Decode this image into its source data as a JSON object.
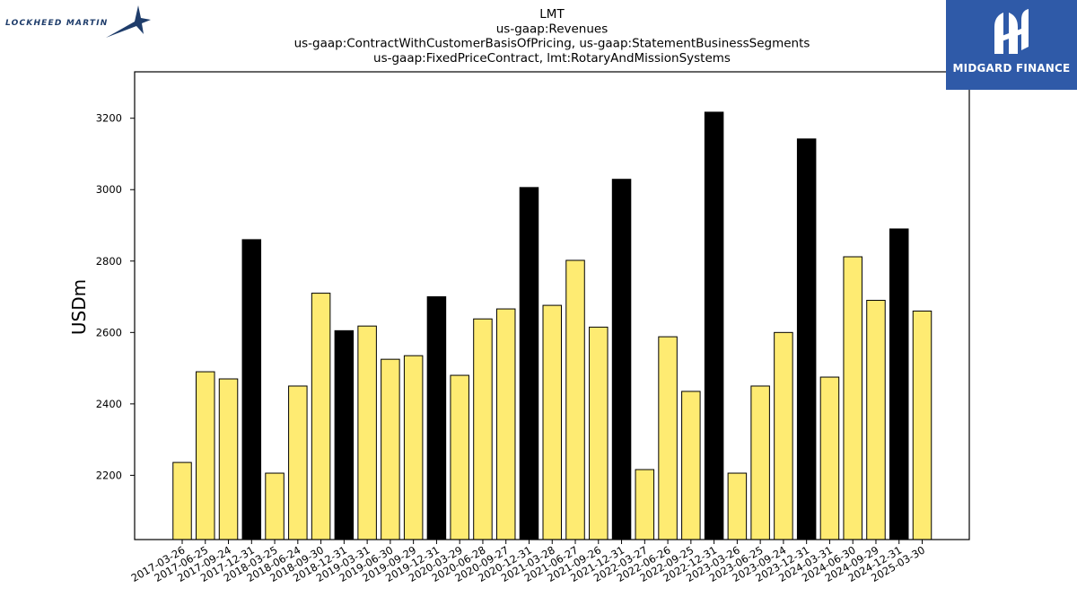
{
  "brands": {
    "left": "LOCKHEED MARTIN",
    "right": "MIDGARD FINANCE"
  },
  "colors": {
    "bar_fill": "#feeb72",
    "bar_highlight": "#000000",
    "bar_edge": "#000000",
    "logo_background": "#2f5aa8"
  },
  "chart_data": {
    "type": "bar",
    "title_lines": [
      "LMT",
      "us-gaap:Revenues",
      "us-gaap:ContractWithCustomerBasisOfPricing, us-gaap:StatementBusinessSegments",
      "us-gaap:FixedPriceContract, lmt:RotaryAndMissionSystems"
    ],
    "xlabel": "",
    "ylabel": "USDm",
    "ylim": [
      2020,
      3330
    ],
    "yticks": [
      2200,
      2400,
      2600,
      2800,
      3000,
      3200
    ],
    "grid": false,
    "legend": "none",
    "categories": [
      "2017-03-26",
      "2017-06-25",
      "2017-09-24",
      "2017-12-31",
      "2018-03-25",
      "2018-06-24",
      "2018-09-30",
      "2018-12-31",
      "2019-03-31",
      "2019-06-30",
      "2019-09-29",
      "2019-12-31",
      "2020-03-29",
      "2020-06-28",
      "2020-09-27",
      "2020-12-31",
      "2021-03-28",
      "2021-06-27",
      "2021-09-26",
      "2021-12-31",
      "2022-03-27",
      "2022-06-26",
      "2022-09-25",
      "2022-12-31",
      "2023-03-26",
      "2023-06-25",
      "2023-09-24",
      "2023-12-31",
      "2024-03-31",
      "2024-06-30",
      "2024-09-29",
      "2024-12-31",
      "2025-03-30"
    ],
    "values": [
      2236,
      2490,
      2470,
      2860,
      2206,
      2450,
      2710,
      2605,
      2618,
      2525,
      2535,
      2700,
      2480,
      2638,
      2666,
      3006,
      2676,
      2802,
      2615,
      3029,
      2216,
      2588,
      2435,
      3217,
      2206,
      2450,
      2600,
      3142,
      2475,
      2812,
      2690,
      2890,
      2660
    ],
    "highlighted": [
      false,
      false,
      false,
      true,
      false,
      false,
      false,
      true,
      false,
      false,
      false,
      true,
      false,
      false,
      false,
      true,
      false,
      false,
      false,
      true,
      false,
      false,
      false,
      true,
      false,
      false,
      false,
      true,
      false,
      false,
      false,
      true,
      false
    ]
  }
}
